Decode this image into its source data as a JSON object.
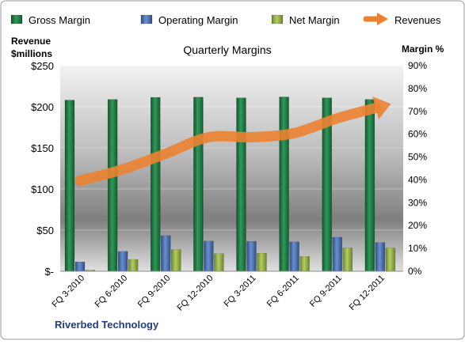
{
  "chart_data": {
    "type": "bar",
    "title": "Quarterly Margins",
    "categories": [
      "FQ 3-2010",
      "FQ 6-2010",
      "FQ 9-2010",
      "FQ 12-2010",
      "FQ 3-2011",
      "FQ 6-2011",
      "FQ 9-2011",
      "FQ 12-2011"
    ],
    "series": [
      {
        "name": "Gross Margin",
        "axis": "right",
        "values": [
          74.9,
          75.2,
          76.1,
          76.2,
          75.9,
          76.3,
          75.9,
          75.2
        ]
      },
      {
        "name": "Operating Margin",
        "axis": "right",
        "values": [
          4.1,
          8.7,
          15.6,
          13.2,
          13.1,
          12.9,
          14.9,
          12.6
        ]
      },
      {
        "name": "Net Margin",
        "axis": "right",
        "values": [
          0.5,
          5.2,
          9.5,
          7.7,
          7.9,
          6.5,
          10.2,
          10.2
        ]
      },
      {
        "name": "Revenues",
        "axis": "left",
        "type": "line",
        "values": [
          110,
          124,
          143,
          163,
          163,
          168,
          186,
          200
        ]
      }
    ],
    "y_left": {
      "label_line1": "Revenue",
      "label_line2": "$millions",
      "range": [
        0,
        250
      ],
      "ticks": [
        "$-",
        "$50",
        "$100",
        "$150",
        "$200",
        "$250"
      ]
    },
    "y_right": {
      "label": "Margin %",
      "range": [
        0,
        90
      ],
      "ticks": [
        "0%",
        "10%",
        "20%",
        "30%",
        "40%",
        "50%",
        "60%",
        "70%",
        "80%",
        "90%"
      ]
    },
    "legend_position": "top",
    "grid": true,
    "colors": {
      "gross": "#1e7a43",
      "operating": "#4a6fb0",
      "net": "#8fac3e",
      "revenue": "#ec8230"
    }
  },
  "footer": {
    "company": "Riverbed Technology"
  }
}
